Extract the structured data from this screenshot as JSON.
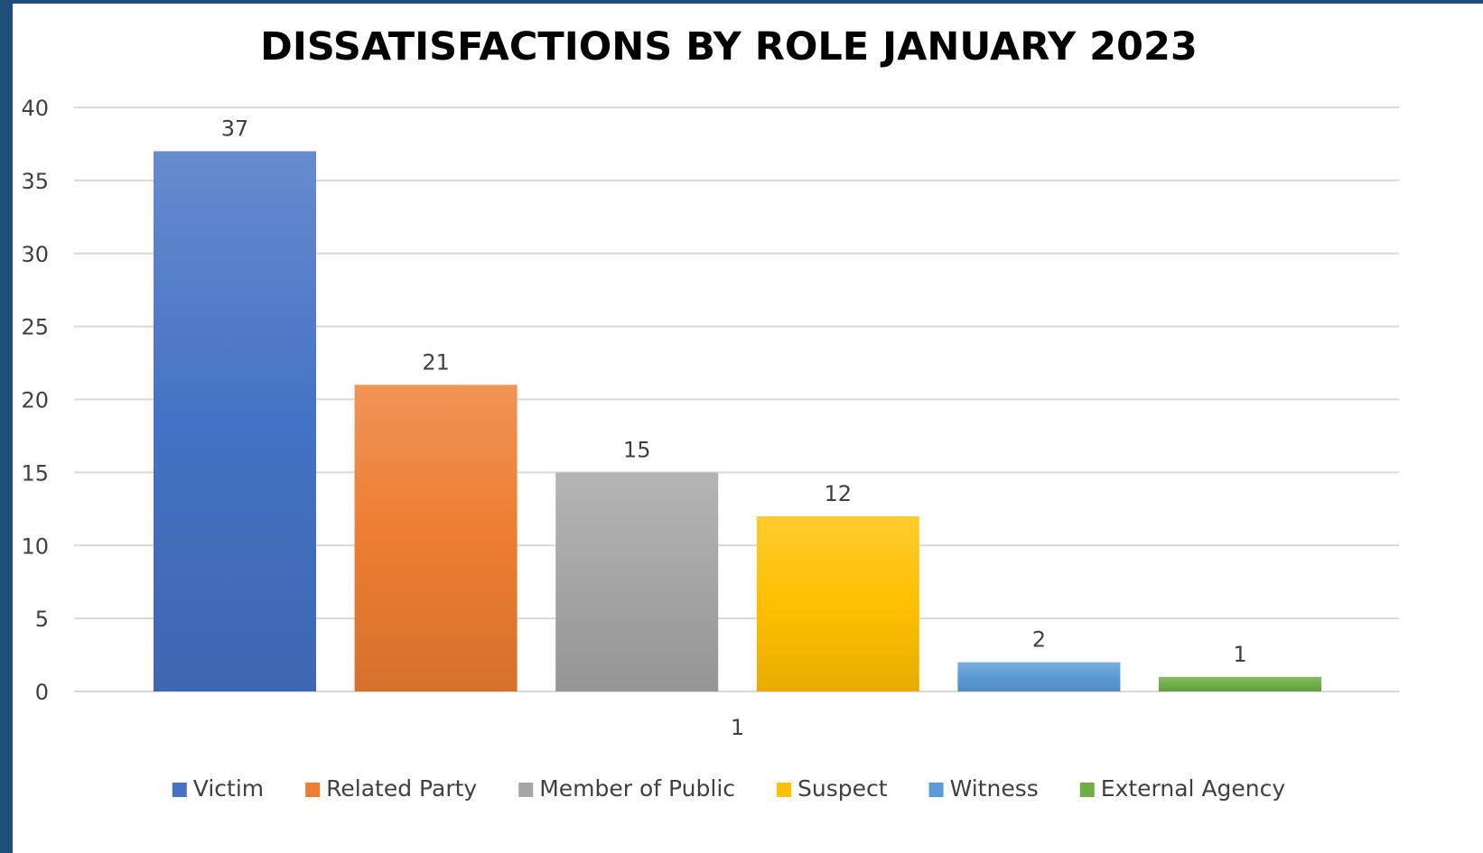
{
  "chart_data": {
    "type": "bar",
    "title": "DISSATISFACTIONS BY ROLE JANUARY 2023",
    "categories": [
      "1"
    ],
    "ylim": [
      0,
      40
    ],
    "yticks": [
      0,
      5,
      10,
      15,
      20,
      25,
      30,
      35,
      40
    ],
    "grid": true,
    "legend_position": "bottom",
    "series": [
      {
        "name": "Victim",
        "values": [
          37
        ],
        "color": "#4472c4"
      },
      {
        "name": "Related Party",
        "values": [
          21
        ],
        "color": "#ed7d31"
      },
      {
        "name": "Member of Public",
        "values": [
          15
        ],
        "color": "#a5a5a5"
      },
      {
        "name": "Suspect",
        "values": [
          12
        ],
        "color": "#ffc000"
      },
      {
        "name": "Witness",
        "values": [
          2
        ],
        "color": "#5b9bd5"
      },
      {
        "name": "External Agency",
        "values": [
          1
        ],
        "color": "#70ad47"
      }
    ]
  }
}
